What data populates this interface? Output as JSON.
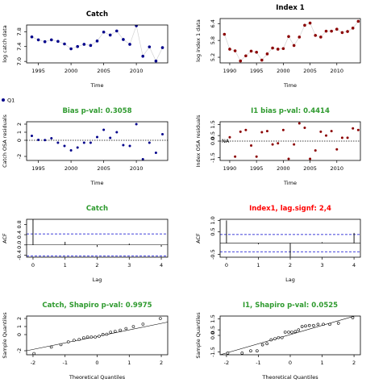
{
  "colors": {
    "catch_points": "#00008b",
    "index_points": "#8b0000",
    "connector": "#d3d3d3",
    "green_title": "#2e9a2e",
    "red_title": "#ff0000",
    "ci_line": "#0000cd",
    "residual_points": "#00008b",
    "index_residual_points": "#8b0000"
  },
  "legend": {
    "label": "Q1"
  },
  "chart_data": [
    {
      "id": "catch",
      "type": "scatter",
      "title": "Catch",
      "title_color": "black",
      "xlabel": "Time",
      "ylabel": "log catch data",
      "xlim": [
        1993.2,
        2014.8
      ],
      "ylim": [
        6.96,
        7.98
      ],
      "xticks": [
        1995,
        2000,
        2005,
        2010
      ],
      "yticks": [
        7.0,
        7.4,
        7.8
      ],
      "ytick_labels": [
        "7.0",
        "7.4",
        "7.8"
      ],
      "connected": true,
      "x": [
        1994,
        1995,
        1996,
        1997,
        1998,
        1999,
        2000,
        2001,
        2002,
        2003,
        2004,
        2005,
        2006,
        2007,
        2008,
        2009,
        2010,
        2011,
        2012,
        2013,
        2014
      ],
      "y": [
        7.66,
        7.58,
        7.53,
        7.58,
        7.54,
        7.47,
        7.34,
        7.4,
        7.46,
        7.43,
        7.55,
        7.79,
        7.71,
        7.82,
        7.59,
        7.46,
        7.96,
        7.14,
        7.39,
        7.01,
        7.37
      ]
    },
    {
      "id": "index1",
      "type": "scatter",
      "title": "Index 1",
      "title_color": "black",
      "xlabel": "Time",
      "ylabel": "log index 1 data",
      "xlim": [
        1988.2,
        2014.4
      ],
      "ylim": [
        5.0,
        6.58
      ],
      "xticks": [
        1990,
        1995,
        2000,
        2005,
        2010
      ],
      "yticks": [
        5.2,
        5.8,
        6.4
      ],
      "ytick_labels": [
        "5.2",
        "5.8",
        "6.4"
      ],
      "connected": true,
      "x": [
        1989,
        1990,
        1991,
        1992,
        1993,
        1994,
        1995,
        1996,
        1997,
        1998,
        1999,
        2000,
        2001,
        2002,
        2003,
        2004,
        2005,
        2006,
        2007,
        2008,
        2009,
        2010,
        2011,
        2012,
        2013,
        2014
      ],
      "y": [
        6.02,
        5.49,
        5.43,
        5.07,
        5.25,
        5.42,
        5.38,
        5.1,
        5.32,
        5.53,
        5.49,
        5.51,
        5.94,
        5.62,
        5.92,
        6.34,
        6.42,
        5.98,
        5.92,
        6.13,
        6.13,
        6.2,
        6.08,
        6.12,
        6.24,
        6.48
      ]
    },
    {
      "id": "catch_osa",
      "type": "scatter",
      "title": "Bias p-val: 0.3058",
      "title_color": "green",
      "xlabel": "Time",
      "ylabel": "Catch OSA residuals",
      "xlim": [
        1993.2,
        2014.8
      ],
      "ylim": [
        -2.5,
        2.3
      ],
      "xticks": [
        1995,
        2000,
        2005,
        2010
      ],
      "yticks": [
        -2,
        0,
        1,
        2
      ],
      "ytick_labels": [
        "-2",
        "0",
        "1",
        "2"
      ],
      "zero_line": true,
      "x": [
        1994,
        1995,
        1996,
        1997,
        1998,
        1999,
        2000,
        2001,
        2002,
        2003,
        2004,
        2005,
        2006,
        2007,
        2008,
        2009,
        2010,
        2011,
        2012,
        2013,
        2014
      ],
      "y": [
        0.55,
        0.05,
        0.02,
        0.25,
        -0.3,
        -0.7,
        -1.25,
        -0.9,
        -0.3,
        -0.3,
        0.4,
        1.3,
        0.3,
        1.0,
        -0.6,
        -0.7,
        2.0,
        -2.35,
        -0.3,
        -1.55,
        0.75
      ]
    },
    {
      "id": "index1_osa",
      "type": "scatter",
      "title": "I1 bias p-val: 0.4414",
      "title_color": "green",
      "xlabel": "Time",
      "ylabel": "Index OSA residuals",
      "xlim": [
        1988.2,
        2014.4
      ],
      "ylim": [
        -1.75,
        1.75
      ],
      "xticks": [
        1990,
        1995,
        2000,
        2005,
        2010
      ],
      "yticks": [
        -1.5,
        0.0,
        0.5,
        1.5
      ],
      "ytick_labels": [
        "-1.5",
        "0.0",
        "0.5",
        "1.5"
      ],
      "zero_line": true,
      "na_label": "NA",
      "x": [
        1990,
        1991,
        1992,
        1993,
        1994,
        1995,
        1996,
        1997,
        1998,
        1999,
        2000,
        2001,
        2002,
        2003,
        2004,
        2005,
        2006,
        2007,
        2008,
        2009,
        2010,
        2011,
        2012,
        2013,
        2014
      ],
      "y": [
        0.35,
        -1.4,
        0.85,
        1.0,
        -0.4,
        -1.4,
        0.8,
        0.9,
        -0.3,
        -0.2,
        1.0,
        -1.6,
        -0.3,
        1.6,
        1.2,
        -1.6,
        -0.85,
        0.85,
        0.5,
        0.9,
        -0.75,
        0.3,
        0.3,
        1.15,
        1.0
      ]
    },
    {
      "id": "catch_acf",
      "type": "bar",
      "title": "Catch",
      "title_color": "green",
      "xlabel": "Lag",
      "ylabel": "ACF",
      "xlim": [
        -0.2,
        4.2
      ],
      "ylim": [
        -0.48,
        1.0
      ],
      "xticks": [
        0,
        1,
        2,
        3,
        4
      ],
      "yticks": [
        -0.4,
        0.0,
        0.4,
        0.8
      ],
      "ytick_labels": [
        "-0.4",
        "0.0",
        "0.4",
        "0.8"
      ],
      "ci": 0.43,
      "lags": [
        0,
        1,
        2,
        3,
        4
      ],
      "values": [
        1.0,
        0.12,
        -0.08,
        0.05,
        -0.07
      ]
    },
    {
      "id": "index1_acf",
      "type": "bar",
      "title": "Index1, lag.signf: 2,4",
      "title_color": "red",
      "xlabel": "Lag",
      "ylabel": "ACF",
      "xlim": [
        -0.2,
        4.2
      ],
      "ylim": [
        -0.62,
        1.05
      ],
      "xticks": [
        0,
        1,
        2,
        3,
        4
      ],
      "yticks": [
        -0.5,
        0.5,
        1.0
      ],
      "ytick_labels": [
        "-0.5",
        "0.5",
        "1.0"
      ],
      "ci": 0.38,
      "lags": [
        0,
        1,
        2,
        3,
        4
      ],
      "values": [
        1.0,
        -0.05,
        -0.6,
        0.04,
        0.45
      ]
    },
    {
      "id": "catch_qq",
      "type": "scatter",
      "title": "Catch, Shapiro p-val: 0.9975",
      "title_color": "green",
      "xlabel": "Theoretical Quantiles",
      "ylabel": "Sample Quantiles",
      "xlim": [
        -2.2,
        2.2
      ],
      "ylim": [
        -2.5,
        2.3
      ],
      "xticks": [
        -2,
        -1,
        0,
        1,
        2
      ],
      "yticks": [
        -2,
        0,
        1,
        2
      ],
      "ytick_labels": [
        "-2",
        "0",
        "1",
        "2"
      ],
      "ref_line": [
        [
          -2.2,
          -2.0
        ],
        [
          2.2,
          1.55
        ]
      ],
      "x": [
        -1.97,
        -1.43,
        -1.13,
        -0.9,
        -0.72,
        -0.56,
        -0.42,
        -0.3,
        -0.18,
        -0.06,
        0.06,
        0.18,
        0.3,
        0.42,
        0.56,
        0.72,
        0.9,
        1.13,
        1.43,
        1.97
      ],
      "y": [
        -2.35,
        -1.55,
        -1.25,
        -0.9,
        -0.7,
        -0.6,
        -0.4,
        -0.3,
        -0.3,
        -0.3,
        -0.2,
        0.02,
        0.05,
        0.3,
        0.4,
        0.55,
        0.75,
        1.0,
        1.3,
        2.0
      ]
    },
    {
      "id": "index1_qq",
      "type": "scatter",
      "title": "I1, Shapiro p-val: 0.0525",
      "title_color": "green",
      "xlabel": "Theoretical Quantiles",
      "ylabel": "Sample Quantiles",
      "xlim": [
        -2.2,
        2.2
      ],
      "ylim": [
        -1.75,
        1.75
      ],
      "xticks": [
        -2,
        -1,
        0,
        1,
        2
      ],
      "yticks": [
        -1.5,
        0.0,
        0.5,
        1.5
      ],
      "ytick_labels": [
        "-1.5",
        "0.0",
        "0.5",
        "1.5"
      ],
      "ref_line": [
        [
          -2.2,
          -1.75
        ],
        [
          2.2,
          1.9
        ]
      ],
      "x": [
        -1.96,
        -1.51,
        -1.24,
        -1.04,
        -0.87,
        -0.73,
        -0.6,
        -0.48,
        -0.37,
        -0.26,
        -0.16,
        -0.05,
        0.05,
        0.16,
        0.26,
        0.37,
        0.48,
        0.6,
        0.73,
        0.87,
        1.04,
        1.24,
        1.51,
        1.96
      ],
      "y": [
        -1.6,
        -1.6,
        -1.4,
        -1.4,
        -0.85,
        -0.75,
        -0.4,
        -0.3,
        -0.2,
        -0.2,
        0.3,
        0.3,
        0.3,
        0.35,
        0.5,
        0.8,
        0.85,
        0.9,
        0.9,
        1.0,
        1.0,
        1.0,
        1.1,
        1.6
      ]
    }
  ]
}
